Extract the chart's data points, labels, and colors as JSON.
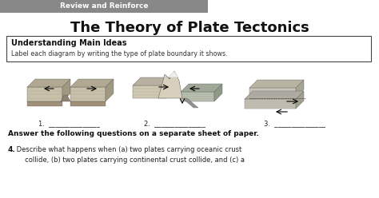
{
  "page_bg": "#ffffff",
  "header_bg": "#888888",
  "header_text": "Review and Reinforce",
  "header_text_color": "#ffffff",
  "title": "The Theory of Plate Tectonics",
  "title_color": "#111111",
  "box_title": "Understanding Main Ideas",
  "box_subtitle": "Label each diagram by writing the type of plate boundary it shows.",
  "label1": "1.  _______________",
  "label2": "2.  _______________",
  "label3": "3.  _______________",
  "answer_header": "Answer the following questions on a separate sheet of paper.",
  "answer_text_bold": "4.",
  "answer_text": " Describe what happens when (a) two plates carrying oceanic crust\n     collide, (b) two plates carrying continental crust collide, and (c) a",
  "fig_width": 4.74,
  "fig_height": 2.48,
  "dpi": 100
}
